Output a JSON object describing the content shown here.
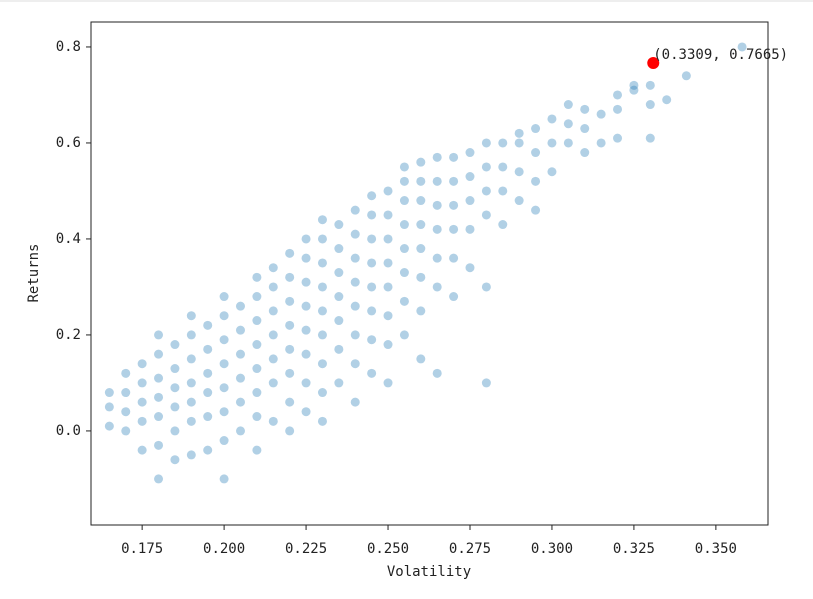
{
  "chart_data": {
    "type": "scatter",
    "xlabel": "Volatility",
    "ylabel": "Returns",
    "annotation": "(0.3309, 0.7665)",
    "xlim": [
      0.1594,
      0.3659
    ],
    "ylim": [
      -0.196,
      0.852
    ],
    "xticks": [
      0.175,
      {
        "value": 0.2,
        "label": "0.200"
      },
      0.225,
      {
        "value": 0.25,
        "label": "0.250"
      },
      0.275,
      {
        "value": 0.3,
        "label": "0.300"
      },
      0.325,
      {
        "value": 0.35,
        "label": "0.350"
      }
    ],
    "yticks": [
      {
        "value": 0,
        "label": "0.0"
      },
      0.2,
      0.4,
      0.6,
      0.8
    ],
    "series": [
      {
        "color": "#1f77b4",
        "opacity": 0.35,
        "x": [
          0.165,
          0.165,
          0.165,
          0.17,
          0.17,
          0.17,
          0.17,
          0.175,
          0.175,
          0.175,
          0.175,
          0.175,
          0.18,
          0.18,
          0.18,
          0.18,
          0.18,
          0.18,
          0.18,
          0.185,
          0.185,
          0.185,
          0.185,
          0.185,
          0.185,
          0.19,
          0.19,
          0.19,
          0.19,
          0.19,
          0.19,
          0.19,
          0.195,
          0.195,
          0.195,
          0.195,
          0.195,
          0.195,
          0.2,
          0.2,
          0.2,
          0.2,
          0.2,
          0.2,
          0.2,
          0.2,
          0.205,
          0.205,
          0.205,
          0.205,
          0.205,
          0.205,
          0.21,
          0.21,
          0.21,
          0.21,
          0.21,
          0.21,
          0.21,
          0.21,
          0.215,
          0.215,
          0.215,
          0.215,
          0.215,
          0.215,
          0.215,
          0.22,
          0.22,
          0.22,
          0.22,
          0.22,
          0.22,
          0.22,
          0.22,
          0.225,
          0.225,
          0.225,
          0.225,
          0.225,
          0.225,
          0.225,
          0.225,
          0.23,
          0.23,
          0.23,
          0.23,
          0.23,
          0.23,
          0.23,
          0.23,
          0.23,
          0.235,
          0.235,
          0.235,
          0.235,
          0.235,
          0.235,
          0.235,
          0.24,
          0.24,
          0.24,
          0.24,
          0.24,
          0.24,
          0.24,
          0.24,
          0.245,
          0.245,
          0.245,
          0.245,
          0.245,
          0.245,
          0.245,
          0.245,
          0.25,
          0.25,
          0.25,
          0.25,
          0.25,
          0.25,
          0.25,
          0.25,
          0.255,
          0.255,
          0.255,
          0.255,
          0.255,
          0.255,
          0.255,
          0.255,
          0.26,
          0.26,
          0.26,
          0.26,
          0.26,
          0.26,
          0.26,
          0.26,
          0.265,
          0.265,
          0.265,
          0.265,
          0.265,
          0.265,
          0.265,
          0.27,
          0.27,
          0.27,
          0.27,
          0.27,
          0.27,
          0.275,
          0.275,
          0.275,
          0.275,
          0.275,
          0.28,
          0.28,
          0.28,
          0.28,
          0.28,
          0.28,
          0.285,
          0.285,
          0.285,
          0.285,
          0.29,
          0.29,
          0.29,
          0.29,
          0.295,
          0.295,
          0.295,
          0.295,
          0.3,
          0.3,
          0.3,
          0.305,
          0.305,
          0.305,
          0.31,
          0.31,
          0.31,
          0.315,
          0.315,
          0.32,
          0.32,
          0.32,
          0.325,
          0.325,
          0.33,
          0.33,
          0.33,
          0.335,
          0.341,
          0.358
        ],
        "values": [
          0.01,
          0.05,
          0.08,
          0,
          0.04,
          0.08,
          0.12,
          -0.04,
          0.02,
          0.06,
          0.1,
          0.14,
          -0.1,
          -0.03,
          0.03,
          0.07,
          0.11,
          0.16,
          0.2,
          -0.06,
          0,
          0.05,
          0.09,
          0.13,
          0.18,
          -0.05,
          0.02,
          0.06,
          0.1,
          0.15,
          0.2,
          0.24,
          -0.04,
          0.03,
          0.08,
          0.12,
          0.17,
          0.22,
          -0.1,
          -0.02,
          0.04,
          0.09,
          0.14,
          0.19,
          0.24,
          0.28,
          0,
          0.06,
          0.11,
          0.16,
          0.21,
          0.26,
          -0.04,
          0.03,
          0.08,
          0.13,
          0.18,
          0.23,
          0.28,
          0.32,
          0.02,
          0.1,
          0.15,
          0.2,
          0.25,
          0.3,
          0.34,
          0,
          0.06,
          0.12,
          0.17,
          0.22,
          0.27,
          0.32,
          0.37,
          0.04,
          0.1,
          0.16,
          0.21,
          0.26,
          0.31,
          0.36,
          0.4,
          0.02,
          0.08,
          0.14,
          0.2,
          0.25,
          0.3,
          0.35,
          0.4,
          0.44,
          0.1,
          0.17,
          0.23,
          0.28,
          0.33,
          0.38,
          0.43,
          0.06,
          0.14,
          0.2,
          0.26,
          0.31,
          0.36,
          0.41,
          0.46,
          0.12,
          0.19,
          0.25,
          0.3,
          0.35,
          0.4,
          0.45,
          0.49,
          0.1,
          0.18,
          0.24,
          0.3,
          0.35,
          0.4,
          0.45,
          0.5,
          0.2,
          0.27,
          0.33,
          0.38,
          0.43,
          0.48,
          0.52,
          0.55,
          0.15,
          0.25,
          0.32,
          0.38,
          0.43,
          0.48,
          0.52,
          0.56,
          0.12,
          0.3,
          0.36,
          0.42,
          0.47,
          0.52,
          0.57,
          0.28,
          0.36,
          0.42,
          0.47,
          0.52,
          0.57,
          0.34,
          0.42,
          0.48,
          0.53,
          0.58,
          0.1,
          0.3,
          0.45,
          0.5,
          0.55,
          0.6,
          0.43,
          0.5,
          0.55,
          0.6,
          0.48,
          0.54,
          0.6,
          0.62,
          0.46,
          0.52,
          0.58,
          0.63,
          0.54,
          0.6,
          0.65,
          0.6,
          0.64,
          0.68,
          0.58,
          0.63,
          0.67,
          0.6,
          0.66,
          0.61,
          0.67,
          0.7,
          0.71,
          0.72,
          0.61,
          0.68,
          0.72,
          0.69,
          0.74,
          0.8
        ]
      },
      {
        "color": "#ff0000",
        "opacity": 1,
        "x": [
          0.3309
        ],
        "values": [
          0.7665
        ]
      }
    ]
  }
}
